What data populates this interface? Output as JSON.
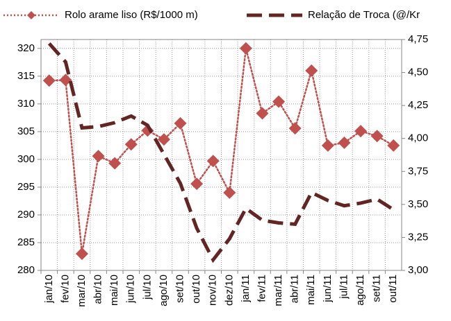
{
  "chart_data": {
    "type": "line",
    "categories": [
      "jan/10",
      "fev/10",
      "mar/10",
      "abr/10",
      "mai/10",
      "jun/10",
      "jul/10",
      "ago/10",
      "set/10",
      "out/10",
      "nov/10",
      "dez/10",
      "jan/11",
      "fev/11",
      "mar/11",
      "abr/11",
      "mai/11",
      "jun/11",
      "jul/11",
      "ago/11",
      "set/11",
      "out/11"
    ],
    "series": [
      {
        "name": "Rolo arame liso (R$/1000 m)",
        "color": "#c0504d",
        "style": "dotted",
        "marker": "diamond",
        "values": [
          314.2,
          314.3,
          283,
          300.6,
          299.3,
          302.7,
          305.2,
          303.6,
          306.5,
          295.6,
          299.7,
          294,
          320,
          308.3,
          310.4,
          305.6,
          316,
          302.5,
          303,
          305.1,
          304.2,
          302.5
        ]
      },
      {
        "name": "Relação de Troca (@/Kr",
        "color": "#632523",
        "style": "dashed",
        "axis": "y2",
        "values": [
          4.72,
          4.58,
          4.08,
          4.09,
          4.12,
          4.17,
          4.1,
          3.88,
          3.66,
          3.32,
          3.08,
          3.24,
          3.47,
          3.38,
          3.36,
          3.35,
          3.59,
          3.53,
          3.49,
          3.51,
          3.54,
          3.46
        ]
      }
    ],
    "ylim": [
      280,
      321.6
    ],
    "yticks": [
      280,
      285,
      290,
      295,
      300,
      305,
      310,
      315,
      320
    ],
    "y2lim": [
      3,
      4.75
    ],
    "y2ticks": [
      {
        "value": 3,
        "label": "3,00"
      },
      {
        "value": 3.25,
        "label": "3,25"
      },
      {
        "value": 3.5,
        "label": "3,50"
      },
      {
        "value": 3.75,
        "label": "3,75"
      },
      {
        "value": 4,
        "label": "4,00"
      },
      {
        "value": 4.25,
        "label": "4,25"
      },
      {
        "value": 4.5,
        "label": "4,50"
      },
      {
        "value": 4.75,
        "label": "4,75"
      }
    ],
    "grid": true
  }
}
